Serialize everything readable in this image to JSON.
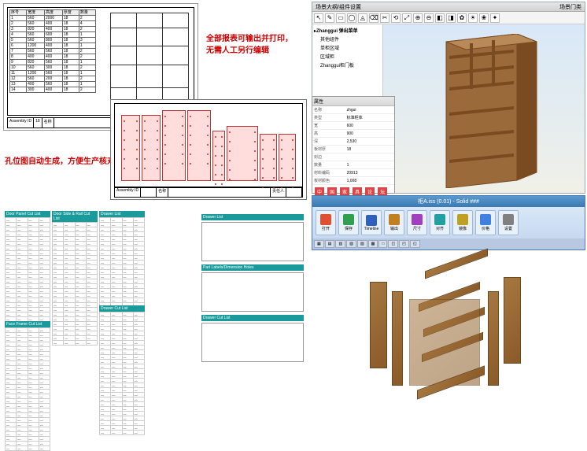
{
  "annotations": {
    "red1_line1": "全部报表可输出并打印，",
    "red1_line2": "无需人工另行编辑",
    "red2": "孔位图自动生成，方便生产核对"
  },
  "cad1": {
    "title_label": "Assembly ID",
    "title_val": "18",
    "name_label": "名称",
    "cols": [
      "序号",
      "宽度",
      "高度",
      "厚度",
      "数量"
    ],
    "rows": [
      [
        "1",
        "560",
        "2000",
        "18",
        "2"
      ],
      [
        "2",
        "560",
        "400",
        "18",
        "4"
      ],
      [
        "3",
        "820",
        "400",
        "18",
        "2"
      ],
      [
        "4",
        "560",
        "600",
        "18",
        "1"
      ],
      [
        "5",
        "560",
        "800",
        "18",
        "3"
      ],
      [
        "6",
        "1200",
        "400",
        "18",
        "1"
      ],
      [
        "7",
        "560",
        "560",
        "18",
        "2"
      ],
      [
        "8",
        "400",
        "400",
        "18",
        "2"
      ],
      [
        "9",
        "820",
        "560",
        "18",
        "1"
      ],
      [
        "10",
        "560",
        "300",
        "18",
        "2"
      ],
      [
        "11",
        "1200",
        "560",
        "18",
        "1"
      ],
      [
        "12",
        "560",
        "200",
        "18",
        "2"
      ],
      [
        "13",
        "400",
        "560",
        "18",
        "1"
      ],
      [
        "14",
        "300",
        "400",
        "18",
        "2"
      ]
    ],
    "cabinet": {
      "vlines": [
        33,
        66
      ],
      "hlines": [
        15,
        35,
        55,
        80
      ]
    }
  },
  "cad2": {
    "title_label": "Assembly ID",
    "name_label": "名称",
    "maker": "责任人",
    "panels": [
      {
        "w": 24,
        "h": 84
      },
      {
        "w": 24,
        "h": 84
      },
      {
        "w": 30,
        "h": 90
      },
      {
        "w": 30,
        "h": 90
      },
      {
        "w": 16,
        "h": 64
      },
      {
        "w": 40,
        "h": 70
      },
      {
        "w": 22,
        "h": 60
      },
      {
        "w": 22,
        "h": 60
      }
    ]
  },
  "cutlists": {
    "headers": [
      "Door Panel Cut List",
      "Door Side & Rail Cut List",
      "Drawer List",
      "Drawer Cut List",
      "Face Frame Cut List",
      "Part Labels/Dimension Holes"
    ],
    "generic_row": [
      "—",
      "—",
      "—",
      "—"
    ]
  },
  "sketchup": {
    "title_left": "场景大纲/组件设置",
    "title_right": "场景门类",
    "tools": [
      "↖",
      "✎",
      "▭",
      "◯",
      "◬",
      "⌫",
      "✂",
      "⟲",
      "⤢",
      "⊕",
      "⊖",
      "◧",
      "◨",
      "✿",
      "☀",
      "❀",
      "✦"
    ],
    "tree": {
      "root": "▸Zhanggui 弹出菜单",
      "children": [
        "其他组件",
        "单柜区域",
        "区域柜",
        "Zhanggui柜门板"
      ]
    },
    "props": {
      "title": "属性",
      "rows": [
        [
          "名称",
          "zhgui"
        ],
        [
          "类型",
          "标准柜体"
        ],
        [
          "宽",
          "600"
        ],
        [
          "高",
          "900"
        ],
        [
          "深",
          "2,530"
        ],
        [
          "板材厚",
          "18"
        ],
        [
          "封边",
          ""
        ],
        [
          "数量",
          "1"
        ],
        [
          "材料编码",
          "20913"
        ],
        [
          "板材颜色",
          "1,008"
        ]
      ],
      "cn_tags": [
        "中",
        "国",
        "家",
        "具",
        "论",
        "坛"
      ]
    },
    "cabinet_color": "#9a6a3a",
    "cabinet_dark": "#7a4a20"
  },
  "solidworks": {
    "title": "柜A.iss (0.01) - Solid ###",
    "buttons": [
      "打开",
      "保存",
      "Timeline",
      "输出",
      "尺寸",
      "对齐",
      "镜像",
      "价格",
      "设置"
    ],
    "tabs": [
      "▦",
      "▤",
      "▥",
      "▧",
      "▨",
      "▩",
      "□",
      "◫",
      "◰",
      "◱"
    ]
  },
  "exploded": {
    "color": "#9a6a3a",
    "panels": [
      {
        "l": 100,
        "t": 0,
        "w": 80,
        "h": 10,
        "skew": "-20deg"
      },
      {
        "l": 30,
        "t": 28,
        "w": 22,
        "h": 110,
        "skew": "0"
      },
      {
        "l": 200,
        "t": 22,
        "w": 22,
        "h": 110,
        "skew": "0"
      },
      {
        "l": 92,
        "t": 42,
        "w": 78,
        "h": 10,
        "skew": "-20deg"
      },
      {
        "l": 98,
        "t": 74,
        "w": 78,
        "h": 10,
        "skew": "-20deg"
      },
      {
        "l": 96,
        "t": 106,
        "w": 78,
        "h": 10,
        "skew": "-20deg"
      },
      {
        "l": 80,
        "t": 50,
        "w": 90,
        "h": 110,
        "skew": "0",
        "op": "0.55"
      },
      {
        "l": 90,
        "t": 150,
        "w": 86,
        "h": 12,
        "skew": "-20deg"
      },
      {
        "l": 58,
        "t": 40,
        "w": 14,
        "h": 120,
        "skew": "0"
      },
      {
        "l": 180,
        "t": 40,
        "w": 14,
        "h": 120,
        "skew": "0"
      }
    ]
  }
}
